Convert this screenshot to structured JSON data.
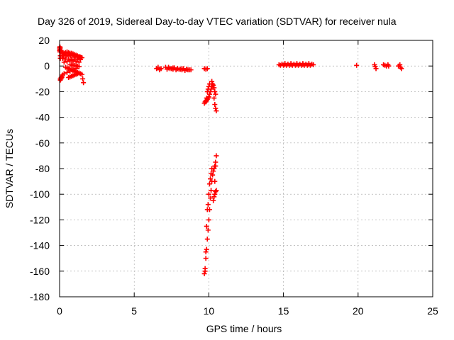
{
  "chart_data": {
    "type": "scatter",
    "title": "Day 326 of 2019, Sidereal Day-to-day VTEC variation (SDTVAR) for receiver nula",
    "xlabel": "GPS time / hours",
    "ylabel": "SDTVAR / TECUs",
    "xlim": [
      0,
      25
    ],
    "ylim": [
      -180,
      20
    ],
    "xticks": [
      0,
      5,
      10,
      15,
      20,
      25
    ],
    "yticks": [
      20,
      0,
      -20,
      -40,
      -60,
      -80,
      -100,
      -120,
      -140,
      -160,
      -180
    ],
    "grid": true,
    "marker": "+",
    "colors": {
      "series": "#ff0000",
      "grid": "#a0a0a0",
      "axis": "#000000"
    },
    "series": [
      {
        "name": "SDTVAR",
        "x": [
          0.02,
          0.05,
          0.1,
          0.15,
          0.2,
          0.3,
          0.4,
          0.5,
          0.6,
          0.7,
          0.8,
          0.9,
          1.0,
          1.1,
          1.2,
          1.3,
          1.4,
          1.5,
          0.05,
          0.15,
          0.25,
          0.35,
          0.45,
          0.55,
          0.65,
          0.75,
          0.85,
          0.95,
          1.05,
          1.15,
          1.25,
          1.35,
          1.45,
          0.05,
          0.2,
          0.4,
          0.6,
          0.8,
          1.0,
          1.2,
          1.4,
          0.3,
          0.5,
          0.7,
          0.9,
          1.1,
          1.3,
          0.4,
          0.5,
          0.6,
          0.7,
          0.8,
          0.9,
          1.0,
          1.1,
          1.2,
          1.3,
          1.4,
          1.5,
          0.05,
          0.1,
          0.15,
          0.2,
          0.3,
          0.5,
          0.7,
          0.9,
          1.1,
          0.6,
          0.7,
          0.8,
          0.9,
          1.0,
          1.1,
          1.2,
          1.3,
          0.05,
          0.1,
          0.15,
          1.55,
          1.6,
          0.7,
          0.8,
          0.9,
          1.0,
          1.1,
          1.2,
          1.3,
          6.5,
          6.6,
          6.7,
          6.8,
          7.1,
          7.3,
          7.5,
          7.7,
          7.9,
          8.1,
          8.3,
          8.5,
          8.7,
          7.2,
          7.4,
          7.6,
          7.8,
          8.0,
          8.2,
          8.4,
          8.6,
          8.8,
          7.3,
          7.6,
          7.9,
          8.2,
          8.5,
          9.7,
          9.8,
          9.9,
          9.8,
          9.85,
          9.9,
          9.95,
          10.0,
          10.05,
          10.1,
          10.15,
          10.2,
          10.25,
          9.7,
          9.75,
          9.8,
          9.85,
          9.9,
          9.95,
          10.0,
          10.05,
          10.2,
          10.3,
          10.35,
          10.4,
          10.45,
          10.35,
          10.4,
          10.45,
          10.5,
          9.7,
          9.75,
          9.8,
          9.85,
          9.9,
          9.95,
          10.0,
          10.05,
          10.1,
          10.15,
          10.2,
          10.25,
          10.3,
          10.35,
          10.4,
          10.45,
          9.75,
          9.8,
          9.85,
          9.9,
          9.95,
          10.0,
          10.05,
          10.1,
          10.15,
          10.2,
          10.3,
          10.35,
          10.4,
          10.45,
          10.5,
          10.5,
          10.45,
          10.4,
          14.7,
          14.9,
          15.1,
          15.3,
          15.5,
          15.7,
          15.9,
          16.1,
          16.3,
          16.5,
          16.7,
          16.9,
          17.0,
          14.8,
          15.0,
          15.2,
          15.4,
          15.6,
          15.8,
          16.0,
          16.2,
          16.4,
          16.6,
          16.8,
          15.1,
          15.5,
          15.9,
          16.3,
          16.7,
          19.9,
          21.1,
          21.15,
          21.2,
          21.7,
          21.8,
          21.9,
          22.0,
          22.05,
          22.7,
          22.8,
          22.85,
          22.9,
          0.0,
          0.0,
          0.02,
          0.02
        ],
        "y": [
          15,
          14,
          12,
          11,
          10,
          10,
          10.5,
          11,
          10.5,
          10,
          10,
          9.5,
          9,
          8.5,
          8,
          7.5,
          7,
          6.5,
          8,
          8,
          8,
          8,
          8,
          8.5,
          8.5,
          8,
          8,
          8,
          7.5,
          7.5,
          7,
          7,
          6.5,
          6,
          6,
          5.5,
          5.5,
          5,
          5,
          5,
          5,
          3,
          3.5,
          4,
          4,
          3.5,
          3,
          -1,
          -1.5,
          -2,
          -2.5,
          -3,
          -3.5,
          -4,
          -4.5,
          -5,
          -5.5,
          -6,
          -6.5,
          -10,
          -9,
          -8,
          -7,
          -6,
          -5,
          -4,
          -3,
          -2,
          -9,
          -8.5,
          -8,
          -7.5,
          -7,
          -6.5,
          -6,
          -5.5,
          -11,
          -10,
          -9,
          -10,
          -13,
          1,
          1,
          0.5,
          0.5,
          0,
          0,
          -0.5,
          -2,
          -1,
          -3,
          -2,
          -1,
          -1.5,
          -2,
          -1.5,
          -2,
          -2.5,
          -2,
          -2.5,
          -3,
          -2.5,
          -2,
          -2.5,
          -3,
          -2.5,
          -3,
          -3.5,
          -3,
          -3,
          -1,
          -1.5,
          -2,
          -2,
          -2.5,
          -2,
          -2.5,
          -2,
          -28,
          -27,
          -26,
          -25,
          -24,
          -22,
          -20,
          -18,
          -16,
          -14,
          -29,
          -28,
          -27,
          -25,
          -20,
          -18,
          -16,
          -14,
          -12,
          -15,
          -17,
          -20,
          -22,
          -25,
          -30,
          -33,
          -35,
          -162,
          -158,
          -150,
          -143,
          -135,
          -128,
          -120,
          -112,
          -103,
          -97,
          -90,
          -85,
          -82,
          -80,
          -78,
          -75,
          -160,
          -145,
          -125,
          -112,
          -108,
          -100,
          -92,
          -88,
          -84,
          -80,
          -105,
          -102,
          -100,
          -98,
          -97,
          -70,
          -78,
          -90,
          1,
          1.5,
          1,
          1.5,
          1,
          1.5,
          1,
          1.5,
          1,
          1.5,
          1,
          1.5,
          1,
          0.5,
          0.5,
          0.5,
          0.5,
          0.5,
          0.5,
          0.5,
          0.5,
          0.5,
          0.5,
          0.5,
          2,
          2,
          2,
          2,
          2,
          0.5,
          1,
          -0.5,
          -2,
          1,
          0.5,
          0,
          1,
          0,
          0,
          1,
          -1,
          -2,
          12,
          14,
          13,
          11
        ]
      }
    ]
  }
}
